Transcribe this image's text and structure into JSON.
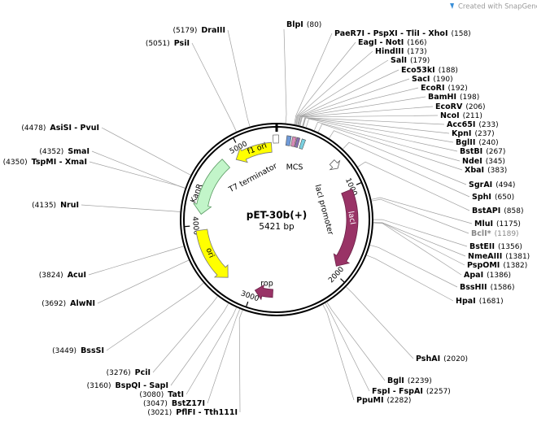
{
  "header": {
    "credit": "Created with SnapGene®"
  },
  "plasmid": {
    "name": "pET-30b(+)",
    "length_label": "5421 bp",
    "length": 5421,
    "ticks": [
      1000,
      2000,
      3000,
      4000,
      5000
    ]
  },
  "features": [
    {
      "label": "f1 ori"
    },
    {
      "label": "T7 terminator"
    },
    {
      "label": "MCS"
    },
    {
      "label": "lacI promoter"
    },
    {
      "label": "lacI"
    },
    {
      "label": "rop"
    },
    {
      "label": "ori"
    },
    {
      "label": "KanR"
    }
  ],
  "enzymes": [
    {
      "name": "BlpI",
      "position": 80,
      "position_label": "(80)"
    },
    {
      "name": "PaeR7I - PspXI - TliI - XhoI",
      "position": 158,
      "position_label": "(158)"
    },
    {
      "name": "EagI - NotI",
      "position": 166,
      "position_label": "(166)"
    },
    {
      "name": "HindIII",
      "position": 173,
      "position_label": "(173)"
    },
    {
      "name": "SalI",
      "position": 179,
      "position_label": "(179)"
    },
    {
      "name": "Eco53kI",
      "position": 188,
      "position_label": "(188)"
    },
    {
      "name": "SacI",
      "position": 190,
      "position_label": "(190)"
    },
    {
      "name": "EcoRI",
      "position": 192,
      "position_label": "(192)"
    },
    {
      "name": "BamHI",
      "position": 198,
      "position_label": "(198)"
    },
    {
      "name": "EcoRV",
      "position": 206,
      "position_label": "(206)"
    },
    {
      "name": "NcoI",
      "position": 211,
      "position_label": "(211)"
    },
    {
      "name": "Acc65I",
      "position": 233,
      "position_label": "(233)"
    },
    {
      "name": "KpnI",
      "position": 237,
      "position_label": "(237)"
    },
    {
      "name": "BglII",
      "position": 240,
      "position_label": "(240)"
    },
    {
      "name": "BstBI",
      "position": 267,
      "position_label": "(267)"
    },
    {
      "name": "NdeI",
      "position": 345,
      "position_label": "(345)"
    },
    {
      "name": "XbaI",
      "position": 383,
      "position_label": "(383)"
    },
    {
      "name": "SgrAI",
      "position": 494,
      "position_label": "(494)"
    },
    {
      "name": "SphI",
      "position": 650,
      "position_label": "(650)"
    },
    {
      "name": "BstAPI",
      "position": 858,
      "position_label": "(858)"
    },
    {
      "name": "MluI",
      "position": 1175,
      "position_label": "(1175)"
    },
    {
      "name": "BclI*",
      "position": 1189,
      "position_label": "(1189)",
      "color": "#888888"
    },
    {
      "name": "BstEII",
      "position": 1356,
      "position_label": "(1356)"
    },
    {
      "name": "NmeAIII",
      "position": 1381,
      "position_label": "(1381)"
    },
    {
      "name": "PspOMI",
      "position": 1382,
      "position_label": "(1382)"
    },
    {
      "name": "ApaI",
      "position": 1386,
      "position_label": "(1386)"
    },
    {
      "name": "BssHII",
      "position": 1586,
      "position_label": "(1586)"
    },
    {
      "name": "HpaI",
      "position": 1681,
      "position_label": "(1681)"
    },
    {
      "name": "PshAI",
      "position": 2020,
      "position_label": "(2020)"
    },
    {
      "name": "BglI",
      "position": 2239,
      "position_label": "(2239)"
    },
    {
      "name": "FspI - FspAI",
      "position": 2257,
      "position_label": "(2257)"
    },
    {
      "name": "PpuMI",
      "position": 2282,
      "position_label": "(2282)"
    },
    {
      "name": "PflFI - Tth111I",
      "position": 3021,
      "position_label": "(3021)"
    },
    {
      "name": "BstZ17I",
      "position": 3047,
      "position_label": "(3047)"
    },
    {
      "name": "TatI",
      "position": 3080,
      "position_label": "(3080)"
    },
    {
      "name": "BspQI - SapI",
      "position": 3160,
      "position_label": "(3160)"
    },
    {
      "name": "PciI",
      "position": 3276,
      "position_label": "(3276)"
    },
    {
      "name": "BssSI",
      "position": 3449,
      "position_label": "(3449)"
    },
    {
      "name": "AlwNI",
      "position": 3692,
      "position_label": "(3692)"
    },
    {
      "name": "AcuI",
      "position": 3824,
      "position_label": "(3824)"
    },
    {
      "name": "NruI",
      "position": 4135,
      "position_label": "(4135)"
    },
    {
      "name": "TspMI - XmaI",
      "position": 4350,
      "position_label": "(4350)"
    },
    {
      "name": "SmaI",
      "position": 4352,
      "position_label": "(4352)"
    },
    {
      "name": "AsiSI - PvuI",
      "position": 4478,
      "position_label": "(4478)"
    },
    {
      "name": "PsiI",
      "position": 5051,
      "position_label": "(5051)"
    },
    {
      "name": "DraIII",
      "position": 5179,
      "position_label": "(5179)"
    }
  ]
}
